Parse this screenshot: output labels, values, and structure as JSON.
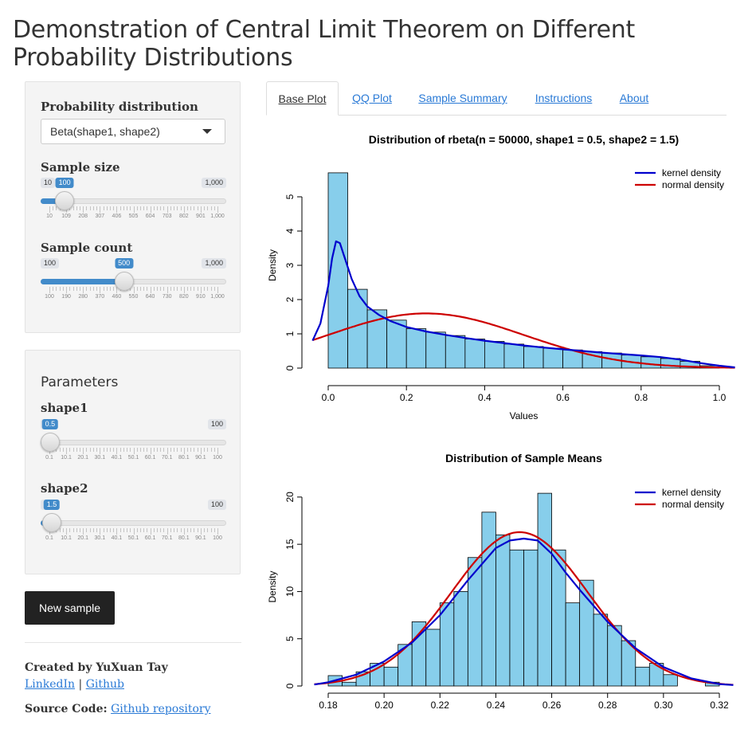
{
  "page_title": "Demonstration of Central Limit Theorem on Different Probability Distributions",
  "sidebar": {
    "dist_label": "Probability distribution",
    "dist_value": "Beta(shape1, shape2)",
    "sample_size": {
      "label": "Sample size",
      "min": "10",
      "max": "1,000",
      "value": "100",
      "fraction": 0.091,
      "ticks": [
        "10",
        "109",
        "208",
        "307",
        "406",
        "505",
        "604",
        "703",
        "802",
        "901",
        "1,000"
      ]
    },
    "sample_count": {
      "label": "Sample count",
      "min": "100",
      "max": "1,000",
      "value": "500",
      "fraction": 0.444,
      "ticks": [
        "100",
        "190",
        "280",
        "370",
        "460",
        "550",
        "640",
        "730",
        "820",
        "910",
        "1,000"
      ]
    },
    "params_title": "Parameters",
    "shape1": {
      "label": "shape1",
      "min": "0.1",
      "max": "100",
      "value": "0.5",
      "fraction": 0.004,
      "ticks": [
        "0.1",
        "10.1",
        "20.1",
        "30.1",
        "40.1",
        "50.1",
        "60.1",
        "70.1",
        "80.1",
        "90.1",
        "100"
      ]
    },
    "shape2": {
      "label": "shape2",
      "min": "0.1",
      "max": "100",
      "value": "1.5",
      "fraction": 0.014,
      "ticks": [
        "0.1",
        "10.1",
        "20.1",
        "30.1",
        "40.1",
        "50.1",
        "60.1",
        "70.1",
        "80.1",
        "90.1",
        "100"
      ]
    },
    "button": "New sample",
    "created_by": "Created by YuXuan Tay",
    "linkedin": "LinkedIn",
    "sep": "|",
    "github": "Github",
    "source_label": "Source Code:",
    "source_link": "Github repository"
  },
  "tabs": [
    "Base Plot",
    "QQ Plot",
    "Sample Summary",
    "Instructions",
    "About"
  ],
  "colors": {
    "bar": "#87ceeb",
    "kernel": "#0000cd",
    "normal": "#cd0000",
    "accent": "#428bca"
  },
  "chart_data": [
    {
      "type": "bar",
      "title": "Distribution of rbeta(n = 50000, shape1 = 0.5, shape2 = 1.5)",
      "xlabel": "Values",
      "ylabel": "Density",
      "xlim": [
        0,
        1
      ],
      "ylim": [
        0,
        6
      ],
      "x_ticks": [
        0,
        0.2,
        0.4,
        0.6,
        0.8,
        1.0
      ],
      "x_tick_labels": [
        "0.0",
        "0.2",
        "0.4",
        "0.6",
        "0.8",
        "1.0"
      ],
      "y_ticks": [
        0,
        1,
        2,
        3,
        4,
        5
      ],
      "bin_width": 0.05,
      "bin_starts": [
        0,
        0.05,
        0.1,
        0.15,
        0.2,
        0.25,
        0.3,
        0.35,
        0.4,
        0.45,
        0.5,
        0.55,
        0.6,
        0.65,
        0.7,
        0.75,
        0.8,
        0.85,
        0.9,
        0.95
      ],
      "values": [
        5.7,
        2.3,
        1.7,
        1.4,
        1.15,
        1.05,
        0.95,
        0.85,
        0.78,
        0.7,
        0.63,
        0.58,
        0.53,
        0.48,
        0.44,
        0.38,
        0.33,
        0.28,
        0.2,
        0.07
      ],
      "legend": [
        "kernel density",
        "normal density"
      ],
      "kernel_density": [
        [
          -0.04,
          0.8
        ],
        [
          -0.02,
          1.3
        ],
        [
          0,
          2.4
        ],
        [
          0.01,
          3.2
        ],
        [
          0.02,
          3.7
        ],
        [
          0.03,
          3.65
        ],
        [
          0.04,
          3.3
        ],
        [
          0.06,
          2.6
        ],
        [
          0.08,
          2.1
        ],
        [
          0.1,
          1.8
        ],
        [
          0.13,
          1.55
        ],
        [
          0.16,
          1.37
        ],
        [
          0.2,
          1.2
        ],
        [
          0.25,
          1.07
        ],
        [
          0.3,
          0.97
        ],
        [
          0.35,
          0.88
        ],
        [
          0.4,
          0.8
        ],
        [
          0.45,
          0.73
        ],
        [
          0.5,
          0.66
        ],
        [
          0.55,
          0.6
        ],
        [
          0.6,
          0.55
        ],
        [
          0.65,
          0.5
        ],
        [
          0.7,
          0.45
        ],
        [
          0.75,
          0.41
        ],
        [
          0.8,
          0.37
        ],
        [
          0.85,
          0.32
        ],
        [
          0.9,
          0.25
        ],
        [
          0.95,
          0.15
        ],
        [
          1.0,
          0.07
        ],
        [
          1.04,
          0.02
        ]
      ],
      "normal_mean": 0.25,
      "normal_sd": 0.25
    },
    {
      "type": "bar",
      "title": "Distribution of Sample Means",
      "xlabel": "",
      "ylabel": "Density",
      "xlim": [
        0.18,
        0.32
      ],
      "ylim": [
        0,
        21
      ],
      "x_ticks": [
        0.18,
        0.2,
        0.22,
        0.24,
        0.26,
        0.28,
        0.3,
        0.32
      ],
      "x_tick_labels": [
        "0.18",
        "0.20",
        "0.22",
        "0.24",
        "0.26",
        "0.28",
        "0.30",
        "0.32"
      ],
      "y_ticks": [
        0,
        5,
        10,
        15,
        20
      ],
      "bin_width": 0.005,
      "bin_starts": [
        0.18,
        0.185,
        0.19,
        0.195,
        0.2,
        0.205,
        0.21,
        0.215,
        0.22,
        0.225,
        0.23,
        0.235,
        0.24,
        0.245,
        0.25,
        0.255,
        0.26,
        0.265,
        0.27,
        0.275,
        0.28,
        0.285,
        0.29,
        0.295,
        0.3,
        0.305,
        0.31,
        0.315
      ],
      "values": [
        1.1,
        0.4,
        1.5,
        2.4,
        2.0,
        4.4,
        6.8,
        6.0,
        8.8,
        10.0,
        13.6,
        18.4,
        16.0,
        14.4,
        14.4,
        20.4,
        14.4,
        8.8,
        11.2,
        7.6,
        6.4,
        4.8,
        2.0,
        2.4,
        1.2,
        0,
        0,
        0.4
      ],
      "legend": [
        "kernel density",
        "normal density"
      ],
      "kernel_density": [
        [
          0.175,
          0.15
        ],
        [
          0.18,
          0.4
        ],
        [
          0.19,
          1.2
        ],
        [
          0.2,
          2.6
        ],
        [
          0.21,
          4.6
        ],
        [
          0.22,
          7.5
        ],
        [
          0.23,
          11.2
        ],
        [
          0.24,
          14.6
        ],
        [
          0.245,
          15.4
        ],
        [
          0.25,
          15.6
        ],
        [
          0.255,
          15.4
        ],
        [
          0.26,
          14.0
        ],
        [
          0.265,
          12.0
        ],
        [
          0.27,
          10.2
        ],
        [
          0.28,
          6.8
        ],
        [
          0.29,
          4.0
        ],
        [
          0.3,
          2.0
        ],
        [
          0.31,
          0.8
        ],
        [
          0.32,
          0.2
        ],
        [
          0.325,
          0.1
        ]
      ],
      "normal_mean": 0.2485,
      "normal_sd": 0.0245
    }
  ]
}
